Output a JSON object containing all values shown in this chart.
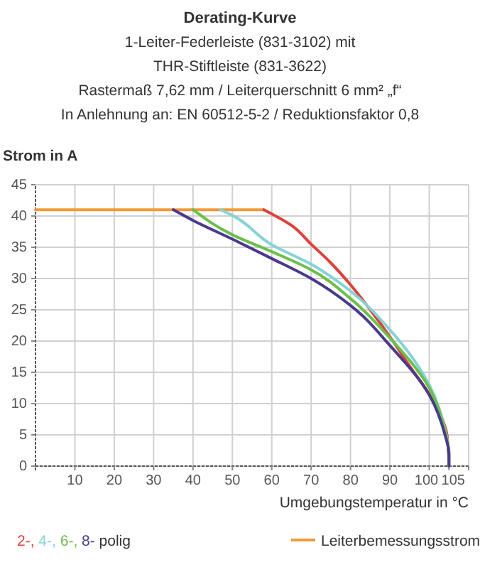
{
  "chart_data": {
    "type": "line",
    "title": "Derating-Kurve",
    "subtitle": "1-Leiter-Federleiste (831-3102) mit\nTHR-Stiftleiste (831-3622)\nRastermaß 7,62 mm / Leiterquerschnitt 6 mm² „f“\nIn Anlehnung an: EN 60512-5-2 / Reduktionsfaktor 0,8",
    "xlabel": "Umgebungstemperatur in °C",
    "ylabel": "Strom in A",
    "legend_title": "polig",
    "xlim": [
      0,
      110
    ],
    "ylim": [
      0,
      45
    ],
    "xticks": [
      10,
      20,
      30,
      40,
      50,
      60,
      70,
      80,
      90,
      100,
      105,
      {
        "value": 110,
        "label": null
      }
    ],
    "yticks": [
      0,
      5,
      10,
      15,
      20,
      25,
      30,
      35,
      40,
      45
    ],
    "grid": true,
    "legend": "bottom",
    "marker": "none",
    "line_style": "solid",
    "series": [
      {
        "name": "Leiterbemessungsstrom",
        "color": "#f39a3a",
        "x": [
          0,
          58
        ],
        "values": [
          41,
          41
        ]
      },
      {
        "name": "2-,",
        "color": "#e0403a",
        "x": [
          58,
          65,
          70,
          75,
          80,
          85,
          90,
          95,
          100,
          103,
          104.5,
          105
        ],
        "values": [
          41,
          38.5,
          35.5,
          32.5,
          29,
          25,
          20.7,
          16,
          11.5,
          8,
          5,
          0
        ]
      },
      {
        "name": "4-,",
        "color": "#86d3d6",
        "x": [
          47,
          50,
          60,
          70,
          80,
          90,
          100,
          104.3,
          105,
          105
        ],
        "values": [
          41,
          40.1,
          35.4,
          32.3,
          28,
          21.8,
          13,
          5,
          2,
          0
        ]
      },
      {
        "name": "6-,",
        "color": "#6cbf4a",
        "x": [
          40,
          50,
          60,
          70,
          80,
          90,
          100,
          104.2,
          105,
          105
        ],
        "values": [
          41,
          37,
          34.3,
          31.4,
          26.8,
          20.5,
          12.5,
          5,
          2,
          0
        ]
      },
      {
        "name": "8-",
        "color": "#4a3a8c",
        "x": [
          35,
          40,
          50,
          60,
          70,
          80,
          90,
          100,
          104,
          105,
          105
        ],
        "values": [
          41,
          39.3,
          36.3,
          33.2,
          30,
          25.7,
          19.3,
          11.4,
          5,
          2,
          0
        ]
      }
    ]
  }
}
